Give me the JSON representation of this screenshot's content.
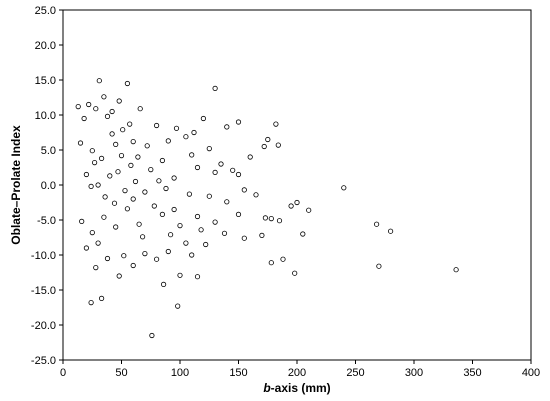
{
  "chart_data": {
    "type": "scatter",
    "xlabel_prefix": "b",
    "xlabel_suffix": "-axis (mm)",
    "ylabel": "Oblate–Prolate Index",
    "xlim": [
      0,
      400
    ],
    "ylim": [
      -25,
      25
    ],
    "xticks": [
      "0",
      "50",
      "100",
      "150",
      "200",
      "250",
      "300",
      "350",
      "400"
    ],
    "yticks": [
      "25.0",
      "20.0",
      "15.0",
      "10.0",
      "5.0",
      "0.0",
      "-5.0",
      "-10.0",
      "-15.0",
      "-20.0",
      "-25.0"
    ],
    "grid": false,
    "legend": "none",
    "marker": "open-circle",
    "points": [
      [
        31,
        14.9
      ],
      [
        55,
        14.5
      ],
      [
        130,
        13.8
      ],
      [
        35,
        12.6
      ],
      [
        48,
        12.0
      ],
      [
        22,
        11.5
      ],
      [
        13,
        11.2
      ],
      [
        28,
        10.9
      ],
      [
        66,
        10.9
      ],
      [
        42,
        10.5
      ],
      [
        120,
        9.5
      ],
      [
        150,
        9.0
      ],
      [
        18,
        9.5
      ],
      [
        38,
        9.8
      ],
      [
        57,
        8.7
      ],
      [
        80,
        8.5
      ],
      [
        97,
        8.1
      ],
      [
        140,
        8.3
      ],
      [
        175,
        6.5
      ],
      [
        182,
        8.7
      ],
      [
        184,
        5.7
      ],
      [
        172,
        5.5
      ],
      [
        112,
        7.5
      ],
      [
        105,
        6.9
      ],
      [
        90,
        6.3
      ],
      [
        72,
        5.6
      ],
      [
        60,
        6.2
      ],
      [
        45,
        5.8
      ],
      [
        25,
        4.9
      ],
      [
        15,
        6.0
      ],
      [
        33,
        3.8
      ],
      [
        50,
        4.2
      ],
      [
        85,
        3.5
      ],
      [
        110,
        4.3
      ],
      [
        125,
        5.2
      ],
      [
        135,
        3.0
      ],
      [
        145,
        2.1
      ],
      [
        160,
        4.0
      ],
      [
        150,
        1.5
      ],
      [
        130,
        1.8
      ],
      [
        115,
        2.5
      ],
      [
        95,
        1.0
      ],
      [
        75,
        2.2
      ],
      [
        62,
        0.5
      ],
      [
        40,
        1.3
      ],
      [
        20,
        1.5
      ],
      [
        30,
        0.0
      ],
      [
        53,
        -0.8
      ],
      [
        70,
        -1.0
      ],
      [
        88,
        -0.5
      ],
      [
        108,
        -1.3
      ],
      [
        125,
        -1.6
      ],
      [
        140,
        -2.4
      ],
      [
        155,
        -0.7
      ],
      [
        165,
        -1.4
      ],
      [
        240,
        -0.4
      ],
      [
        200,
        -2.5
      ],
      [
        210,
        -3.6
      ],
      [
        195,
        -3.0
      ],
      [
        178,
        -4.8
      ],
      [
        185,
        -5.1
      ],
      [
        173,
        -4.7
      ],
      [
        150,
        -4.2
      ],
      [
        130,
        -5.3
      ],
      [
        115,
        -4.5
      ],
      [
        100,
        -5.8
      ],
      [
        85,
        -4.2
      ],
      [
        65,
        -5.6
      ],
      [
        45,
        -6.0
      ],
      [
        25,
        -6.8
      ],
      [
        16,
        -5.2
      ],
      [
        35,
        -4.6
      ],
      [
        55,
        -3.4
      ],
      [
        78,
        -3.0
      ],
      [
        95,
        -3.5
      ],
      [
        118,
        -6.4
      ],
      [
        138,
        -6.9
      ],
      [
        155,
        -7.6
      ],
      [
        170,
        -7.2
      ],
      [
        205,
        -7.0
      ],
      [
        268,
        -5.6
      ],
      [
        280,
        -6.6
      ],
      [
        122,
        -8.5
      ],
      [
        105,
        -8.3
      ],
      [
        90,
        -9.5
      ],
      [
        70,
        -9.8
      ],
      [
        52,
        -10.1
      ],
      [
        38,
        -10.5
      ],
      [
        20,
        -9.0
      ],
      [
        28,
        -11.8
      ],
      [
        60,
        -11.5
      ],
      [
        80,
        -10.6
      ],
      [
        100,
        -12.9
      ],
      [
        115,
        -13.1
      ],
      [
        178,
        -11.1
      ],
      [
        188,
        -10.6
      ],
      [
        198,
        -12.6
      ],
      [
        270,
        -11.6
      ],
      [
        336,
        -12.1
      ],
      [
        86,
        -14.2
      ],
      [
        48,
        -13.0
      ],
      [
        33,
        -16.2
      ],
      [
        24,
        -16.8
      ],
      [
        98,
        -17.3
      ],
      [
        76,
        -21.5
      ],
      [
        42,
        7.3
      ],
      [
        27,
        3.2
      ],
      [
        36,
        -1.7
      ],
      [
        58,
        2.8
      ],
      [
        68,
        -7.4
      ],
      [
        44,
        -2.6
      ],
      [
        24,
        -0.2
      ],
      [
        51,
        7.9
      ],
      [
        64,
        4.0
      ],
      [
        82,
        0.6
      ],
      [
        92,
        -7.1
      ],
      [
        110,
        -10.0
      ],
      [
        30,
        -8.3
      ],
      [
        60,
        -2.0
      ],
      [
        47,
        1.9
      ]
    ]
  }
}
